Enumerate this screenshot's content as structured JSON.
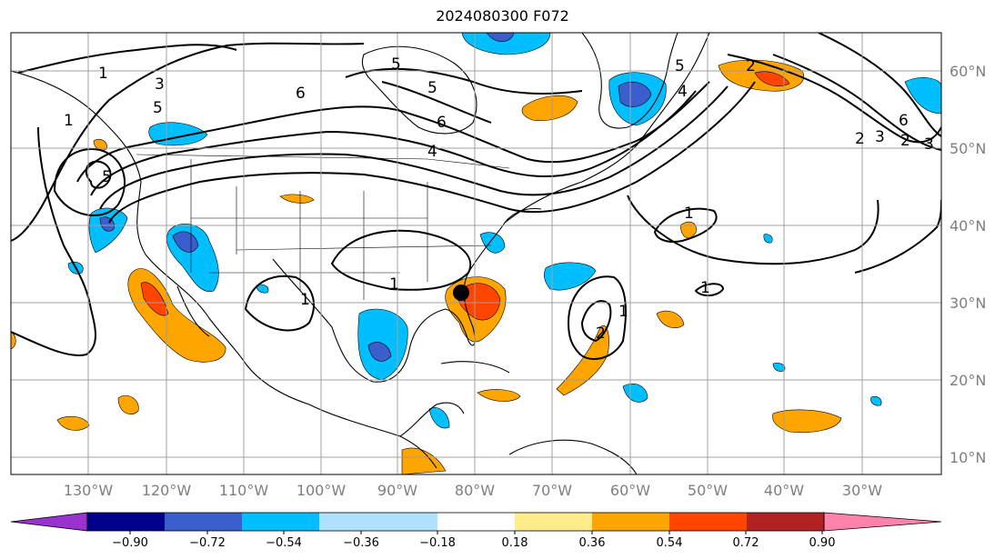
{
  "title": "2024080300 F072",
  "map": {
    "lon_labels": [
      "130°W",
      "120°W",
      "110°W",
      "100°W",
      "90°W",
      "80°W",
      "70°W",
      "60°W",
      "50°W",
      "40°W",
      "30°W"
    ],
    "lat_labels": [
      "60°N",
      "50°N",
      "40°N",
      "30°N",
      "20°N",
      "10°N"
    ],
    "contour_labels": [
      "1",
      "3",
      "5",
      "5",
      "6",
      "4",
      "5",
      "5",
      "6",
      "4",
      "1",
      "1",
      "1",
      "1",
      "2",
      "2",
      "3",
      "2",
      "3",
      "6",
      "5",
      "1",
      "1",
      "2"
    ]
  },
  "colorbar": {
    "colors": [
      "#9a32cd",
      "#00008b",
      "#3a5fcd",
      "#00bfff",
      "#b0e2ff",
      "#ffffff",
      "#ffffff",
      "#ffec8b",
      "#ffa500",
      "#ff4500",
      "#b22222",
      "#ff82ab"
    ],
    "ticks": [
      "−0.90",
      "−0.72",
      "−0.54",
      "−0.36",
      "−0.18",
      "0.18",
      "0.36",
      "0.54",
      "0.72",
      "0.90"
    ]
  }
}
